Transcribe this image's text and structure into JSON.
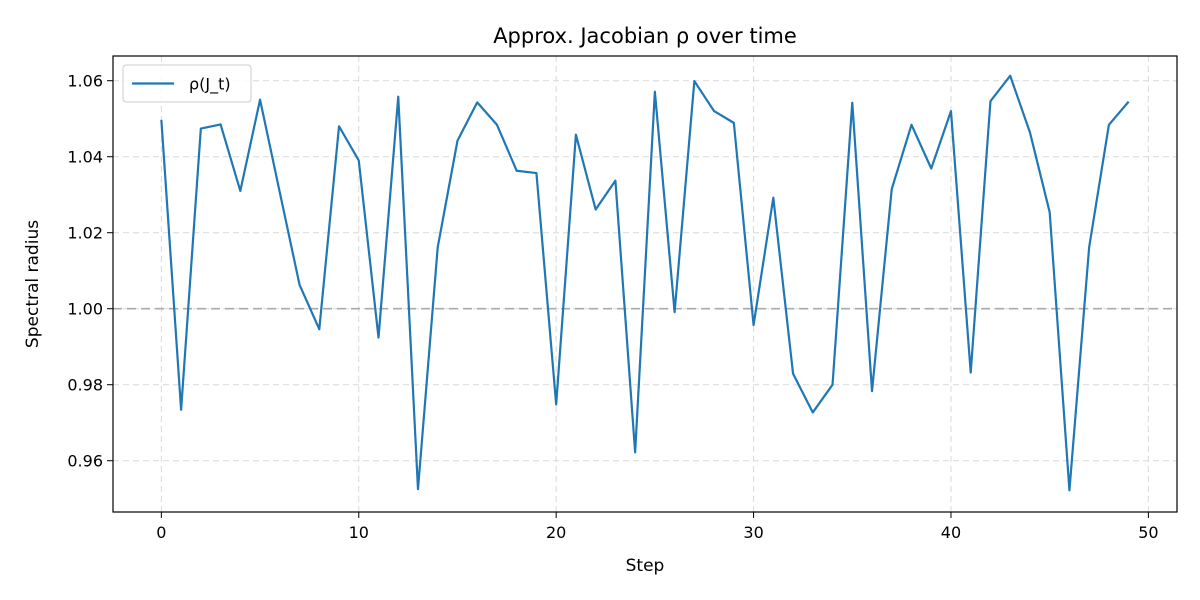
{
  "chart_data": {
    "type": "line",
    "title": "Approx. Jacobian ρ over time",
    "xlabel": "Step",
    "ylabel": "Spectral radius",
    "xlim": [
      -2.45,
      51.45
    ],
    "ylim": [
      0.9465,
      1.0665
    ],
    "xticks": [
      0,
      10,
      20,
      30,
      40,
      50
    ],
    "yticks": [
      0.96,
      0.98,
      1.0,
      1.02,
      1.04,
      1.06
    ],
    "ytick_labels": [
      "0.96",
      "0.98",
      "1.00",
      "1.02",
      "1.04",
      "1.06"
    ],
    "grid": true,
    "legend_position": "top-left",
    "reference_line": {
      "y": 1.0,
      "style": "dashed",
      "color": "#aaaaaa"
    },
    "series": [
      {
        "name": "ρ(J_t)",
        "color": "#1f77b4",
        "x": [
          0,
          1,
          2,
          3,
          4,
          5,
          6,
          7,
          8,
          9,
          10,
          11,
          12,
          13,
          14,
          15,
          16,
          17,
          18,
          19,
          20,
          21,
          22,
          23,
          24,
          25,
          26,
          27,
          28,
          29,
          30,
          31,
          32,
          33,
          34,
          35,
          36,
          37,
          38,
          39,
          40,
          41,
          42,
          43,
          44,
          45,
          46,
          47,
          48,
          49
        ],
        "values": [
          1.0497,
          0.9734,
          1.0474,
          1.0485,
          1.031,
          1.055,
          1.0306,
          1.0063,
          0.9946,
          1.048,
          1.039,
          0.9924,
          1.0558,
          0.9525,
          1.0162,
          1.0442,
          1.0543,
          1.0484,
          1.0363,
          1.0357,
          0.9748,
          1.0458,
          1.0261,
          1.0337,
          0.9622,
          1.0571,
          0.9991,
          1.0599,
          1.052,
          1.0489,
          0.9957,
          1.0292,
          0.9829,
          0.9727,
          0.98,
          1.0542,
          0.9783,
          1.0315,
          1.0484,
          1.0369,
          1.052,
          0.9832,
          1.0546,
          1.0613,
          1.0464,
          1.0254,
          0.9522,
          1.0162,
          1.0484,
          1.0545
        ]
      }
    ]
  }
}
